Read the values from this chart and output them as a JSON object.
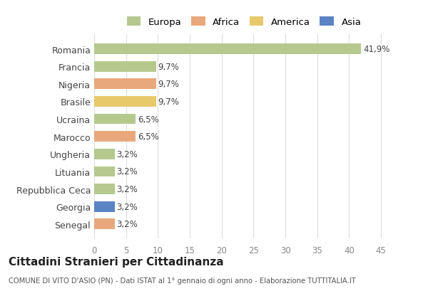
{
  "countries": [
    "Romania",
    "Francia",
    "Nigeria",
    "Brasile",
    "Ucraina",
    "Marocco",
    "Ungheria",
    "Lituania",
    "Repubblica Ceca",
    "Georgia",
    "Senegal"
  ],
  "values": [
    41.9,
    9.7,
    9.7,
    9.7,
    6.5,
    6.5,
    3.2,
    3.2,
    3.2,
    3.2,
    3.2
  ],
  "colors": [
    "#b5c98e",
    "#b5c98e",
    "#e8a87c",
    "#e8c96a",
    "#b5c98e",
    "#e8a87c",
    "#b5c98e",
    "#b5c98e",
    "#b5c98e",
    "#5b84c4",
    "#e8a87c"
  ],
  "labels": [
    "41,9%",
    "9,7%",
    "9,7%",
    "9,7%",
    "6,5%",
    "6,5%",
    "3,2%",
    "3,2%",
    "3,2%",
    "3,2%",
    "3,2%"
  ],
  "legend_labels": [
    "Europa",
    "Africa",
    "America",
    "Asia"
  ],
  "legend_colors": [
    "#b5c98e",
    "#e8a87c",
    "#e8c96a",
    "#5b84c4"
  ],
  "title": "Cittadini Stranieri per Cittadinanza",
  "subtitle": "COMUNE DI VITO D'ASIO (PN) - Dati ISTAT al 1° gennaio di ogni anno - Elaborazione TUTTITALIA.IT",
  "xlim": [
    0,
    47
  ],
  "xticks": [
    0,
    5,
    10,
    15,
    20,
    25,
    30,
    35,
    40,
    45
  ],
  "background_color": "#ffffff",
  "grid_color": "#dddddd"
}
